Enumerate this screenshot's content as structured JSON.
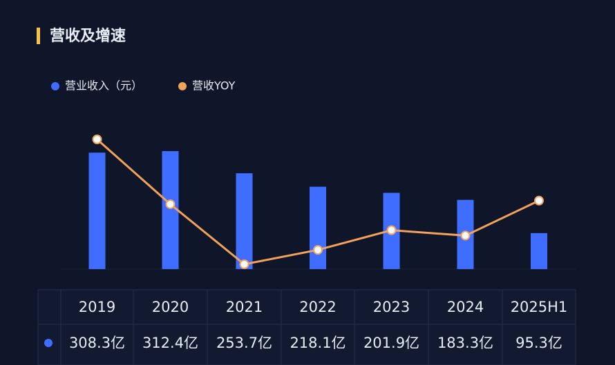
{
  "chart_data": {
    "type": "bar-line",
    "title": "营收及增速",
    "categories": [
      "2019",
      "2020",
      "2021",
      "2022",
      "2023",
      "2024",
      "2025H1"
    ],
    "series": [
      {
        "name": "营业收入（元）",
        "color": "#3f6dff",
        "type": "bar",
        "values": [
          308.3,
          312.4,
          253.7,
          218.1,
          201.9,
          183.3,
          95.3
        ],
        "value_labels": [
          "308.3亿",
          "312.4亿",
          "253.7亿",
          "218.1亿",
          "201.9亿",
          "183.3亿",
          "95.3亿"
        ]
      },
      {
        "name": "营收YOY",
        "color": "#f3a25a",
        "type": "line",
        "values": [
          23,
          1.3,
          -18.8,
          -14.0,
          -7.4,
          -9.2,
          2.5
        ]
      }
    ]
  }
}
